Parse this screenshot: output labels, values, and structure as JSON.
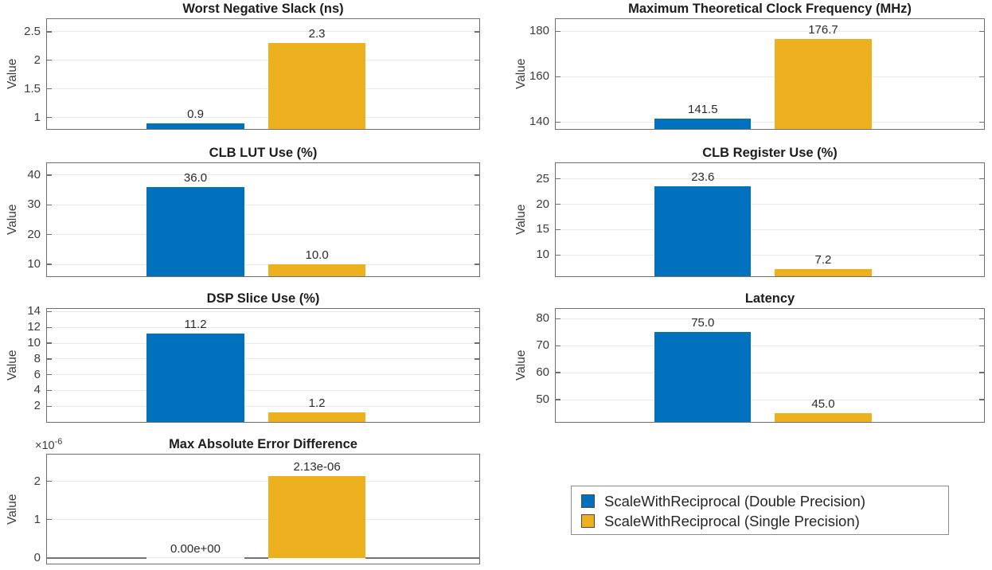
{
  "series": [
    {
      "name": "ScaleWithReciprocal (Double Precision)",
      "color": "#0072BD"
    },
    {
      "name": "ScaleWithReciprocal (Single Precision)",
      "color": "#EDB120"
    }
  ],
  "legend": {
    "position": "bottom-right",
    "entries": [
      {
        "label": "ScaleWithReciprocal (Double Precision)",
        "color": "#0072BD"
      },
      {
        "label": "ScaleWithReciprocal (Single Precision)",
        "color": "#EDB120"
      }
    ]
  },
  "chart_data": [
    {
      "type": "bar",
      "title": "Worst Negative Slack (ns)",
      "ylabel": "Value",
      "values": [
        0.9,
        2.3
      ],
      "bar_labels": [
        "0.9",
        "2.3"
      ],
      "ylim": [
        0.8,
        2.72
      ],
      "ytick_values": [
        1,
        1.5,
        2,
        2.5
      ],
      "ytick_labels": [
        "1",
        "1.5",
        "2",
        "2.5"
      ],
      "grid": true
    },
    {
      "type": "bar",
      "title": "Maximum Theoretical Clock Frequency (MHz)",
      "ylabel": "Value",
      "values": [
        141.5,
        176.7
      ],
      "bar_labels": [
        "141.5",
        "176.7"
      ],
      "ylim": [
        137,
        185.4
      ],
      "ytick_values": [
        140,
        160,
        180
      ],
      "ytick_labels": [
        "140",
        "160",
        "180"
      ],
      "grid": true
    },
    {
      "type": "bar",
      "title": "CLB LUT Use (%)",
      "ylabel": "Value",
      "values": [
        36.0,
        10.0
      ],
      "bar_labels": [
        "36.0",
        "10.0"
      ],
      "ylim": [
        6,
        44
      ],
      "ytick_values": [
        10,
        20,
        30,
        40
      ],
      "ytick_labels": [
        "10",
        "20",
        "30",
        "40"
      ],
      "grid": true
    },
    {
      "type": "bar",
      "title": "CLB Register Use (%)",
      "ylabel": "Value",
      "values": [
        23.6,
        7.2
      ],
      "bar_labels": [
        "23.6",
        "7.2"
      ],
      "ylim": [
        5.8,
        28.1
      ],
      "ytick_values": [
        10,
        15,
        20,
        25
      ],
      "ytick_labels": [
        "10",
        "15",
        "20",
        "25"
      ],
      "grid": true
    },
    {
      "type": "bar",
      "title": "DSP Slice Use (%)",
      "ylabel": "Value",
      "values": [
        11.2,
        1.2
      ],
      "bar_labels": [
        "11.2",
        "1.2"
      ],
      "ylim": [
        0,
        14.35
      ],
      "ytick_values": [
        2,
        4,
        6,
        8,
        10,
        12,
        14
      ],
      "ytick_labels": [
        "2",
        "4",
        "6",
        "8",
        "10",
        "12",
        "14"
      ],
      "grid": true
    },
    {
      "type": "bar",
      "title": "Latency",
      "ylabel": "Value",
      "values": [
        75.0,
        45.0
      ],
      "bar_labels": [
        "75.0",
        "45.0"
      ],
      "ylim": [
        41.8,
        83.6
      ],
      "ytick_values": [
        50,
        60,
        70,
        80
      ],
      "ytick_labels": [
        "50",
        "60",
        "70",
        "80"
      ],
      "grid": true
    },
    {
      "type": "bar",
      "title": "Max Absolute Error Difference",
      "ylabel": "Value",
      "value_unit": "1e-6",
      "scale_label": {
        "base": "×10",
        "power": "-6"
      },
      "values": [
        0,
        2.13
      ],
      "bar_labels": [
        "0.00e+00",
        "2.13e-06"
      ],
      "ylim": [
        -0.15,
        2.7
      ],
      "ytick_values": [
        0,
        1,
        2
      ],
      "ytick_labels": [
        "0",
        "1",
        "2"
      ],
      "baseline": 0,
      "grid": true
    }
  ]
}
